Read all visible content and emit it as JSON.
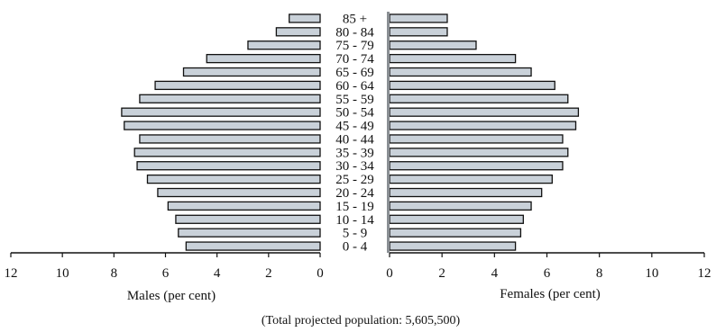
{
  "chart_data": {
    "type": "bar",
    "orientation": "horizontal",
    "subtype": "population-pyramid",
    "categories": [
      "0 - 4",
      "5 - 9",
      "10 - 14",
      "15 - 19",
      "20 - 24",
      "25 - 29",
      "30 - 34",
      "35 - 39",
      "40 - 44",
      "45 - 49",
      "50 - 54",
      "55 - 59",
      "60 - 64",
      "65 - 69",
      "70 - 74",
      "75 - 79",
      "80 - 84",
      "85 +"
    ],
    "series": [
      {
        "side": "left",
        "values": [
          5.2,
          5.5,
          5.6,
          5.9,
          6.3,
          6.7,
          7.1,
          7.2,
          7.0,
          7.6,
          7.7,
          7.0,
          6.4,
          5.3,
          4.4,
          2.8,
          1.7,
          1.2
        ]
      },
      {
        "side": "right",
        "values": [
          4.8,
          5.0,
          5.1,
          5.4,
          5.8,
          6.2,
          6.6,
          6.8,
          6.6,
          7.1,
          7.2,
          6.8,
          6.3,
          5.4,
          4.8,
          3.3,
          2.2,
          2.2
        ]
      }
    ],
    "x_ticks": [
      "0",
      "2",
      "4",
      "6",
      "8",
      "10",
      "12"
    ],
    "xlim": [
      0,
      12
    ],
    "xlabel_left": "Males (per cent)",
    "xlabel_right": "Females (per cent)",
    "caption": "(Total projected population: 5,605,500)",
    "grid": false,
    "legend": "none"
  }
}
